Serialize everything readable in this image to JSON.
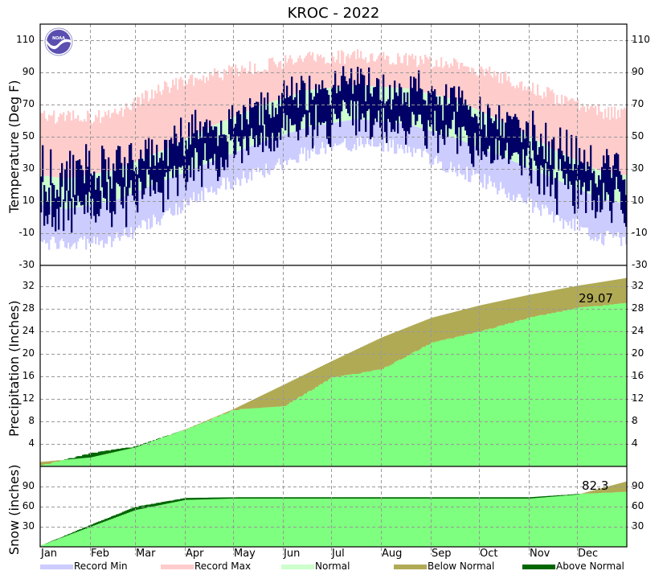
{
  "chart_data": [
    {
      "type": "bar",
      "panel": "temperature",
      "title": "KROC - 2022",
      "ylabel": "Temperature (Deg F)",
      "ylim": [
        -30,
        120
      ],
      "yticks": [
        110,
        90,
        70,
        50,
        30,
        10,
        -10,
        -30
      ],
      "grid": true,
      "x": [
        "Jan",
        "Feb",
        "Mar",
        "Apr",
        "May",
        "Jun",
        "Jul",
        "Aug",
        "Sep",
        "Oct",
        "Nov",
        "Dec"
      ],
      "series": [
        {
          "name": "Record Max",
          "color": "#ffcccc",
          "description": "daily record highs, ~60-70 in Jan rising to ~95-100 in Jul, falling to ~60-70 in Dec"
        },
        {
          "name": "Normal",
          "color": "#ccffcc",
          "description": "normal range band, ~15-32 in Jan, ~62-82 in Jul, ~20-35 in Dec"
        },
        {
          "name": "Record Min",
          "color": "#ccccff",
          "description": "daily record lows, ~-15 in Jan rising to ~50 in Jul, ~-10 in Dec"
        },
        {
          "name": "Observed 2022",
          "color": "#000066",
          "description": "daily observed high/low bars, Jan ~-5 to 45, Jul ~60 to 90, Dec ~5 to 55"
        }
      ],
      "monthly_normal_low": [
        5,
        10,
        22,
        34,
        46,
        56,
        61,
        58,
        49,
        37,
        24,
        11
      ],
      "monthly_normal_high": [
        24,
        29,
        41,
        56,
        69,
        79,
        82,
        80,
        73,
        59,
        42,
        28
      ],
      "monthly_record_low": [
        -12,
        -10,
        5,
        22,
        33,
        45,
        51,
        48,
        35,
        22,
        5,
        -8
      ],
      "monthly_record_high": [
        62,
        63,
        80,
        88,
        94,
        99,
        100,
        98,
        95,
        87,
        75,
        65
      ]
    },
    {
      "type": "area",
      "panel": "precipitation",
      "ylabel": "Precipitation (Inches)",
      "ylim": [
        0,
        35
      ],
      "yticks": [
        32,
        28,
        24,
        20,
        16,
        12,
        8,
        4
      ],
      "grid": true,
      "series": [
        {
          "name": "Normal (cumulative)",
          "values_month_end": [
            0.8,
            1.6,
            3.4,
            6.6,
            10.2,
            14.5,
            18.7,
            22.9,
            26.4,
            28.6,
            30.5,
            32.1,
            33.5
          ]
        },
        {
          "name": "Observed 2022 (cumulative)",
          "values_month_end": [
            0.2,
            2.4,
            3.6,
            6.6,
            10.1,
            10.7,
            15.8,
            17.3,
            22.0,
            24.0,
            26.5,
            28.2,
            29.07
          ]
        }
      ],
      "annotation": "29.07"
    },
    {
      "type": "area",
      "panel": "snow",
      "ylabel": "Snow (inches)",
      "ylim": [
        0,
        120
      ],
      "yticks": [
        90,
        60,
        30
      ],
      "grid": true,
      "series": [
        {
          "name": "Normal (cumulative)",
          "values_month_end": [
            2,
            30,
            55,
            70,
            72,
            72,
            72,
            72,
            72,
            72,
            72,
            78,
            98
          ]
        },
        {
          "name": "Observed 2022 (cumulative)",
          "values_month_end": [
            2,
            33,
            60,
            73,
            74,
            74,
            74,
            74,
            74,
            74,
            74,
            79,
            82.3
          ]
        }
      ],
      "annotation": "82.3"
    }
  ],
  "title": "KROC - 2022",
  "panels": {
    "temperature": {
      "ylabel": "Temperature (Deg F)",
      "ticks": [
        "110",
        "90",
        "70",
        "50",
        "30",
        "10",
        "-10",
        "-30"
      ]
    },
    "precipitation": {
      "ylabel": "Precipitation (Inches)",
      "ticks": [
        "32",
        "28",
        "24",
        "20",
        "16",
        "12",
        "8",
        "4"
      ],
      "total": "29.07"
    },
    "snow": {
      "ylabel": "Snow (inches)",
      "ticks": [
        "90",
        "60",
        "30"
      ],
      "total": "82.3"
    }
  },
  "months": [
    "Jan",
    "Feb",
    "Mar",
    "Apr",
    "May",
    "Jun",
    "Jul",
    "Aug",
    "Sep",
    "Oct",
    "Nov",
    "Dec"
  ],
  "legend": [
    {
      "label": "Record Min",
      "color": "#ccccff"
    },
    {
      "label": "Record Max",
      "color": "#ffcccc"
    },
    {
      "label": "Normal",
      "color": "#ccffcc"
    },
    {
      "label": "Below Normal",
      "color": "#b0aa55"
    },
    {
      "label": "Above Normal",
      "color": "#006600"
    }
  ],
  "logo": "NOAA"
}
